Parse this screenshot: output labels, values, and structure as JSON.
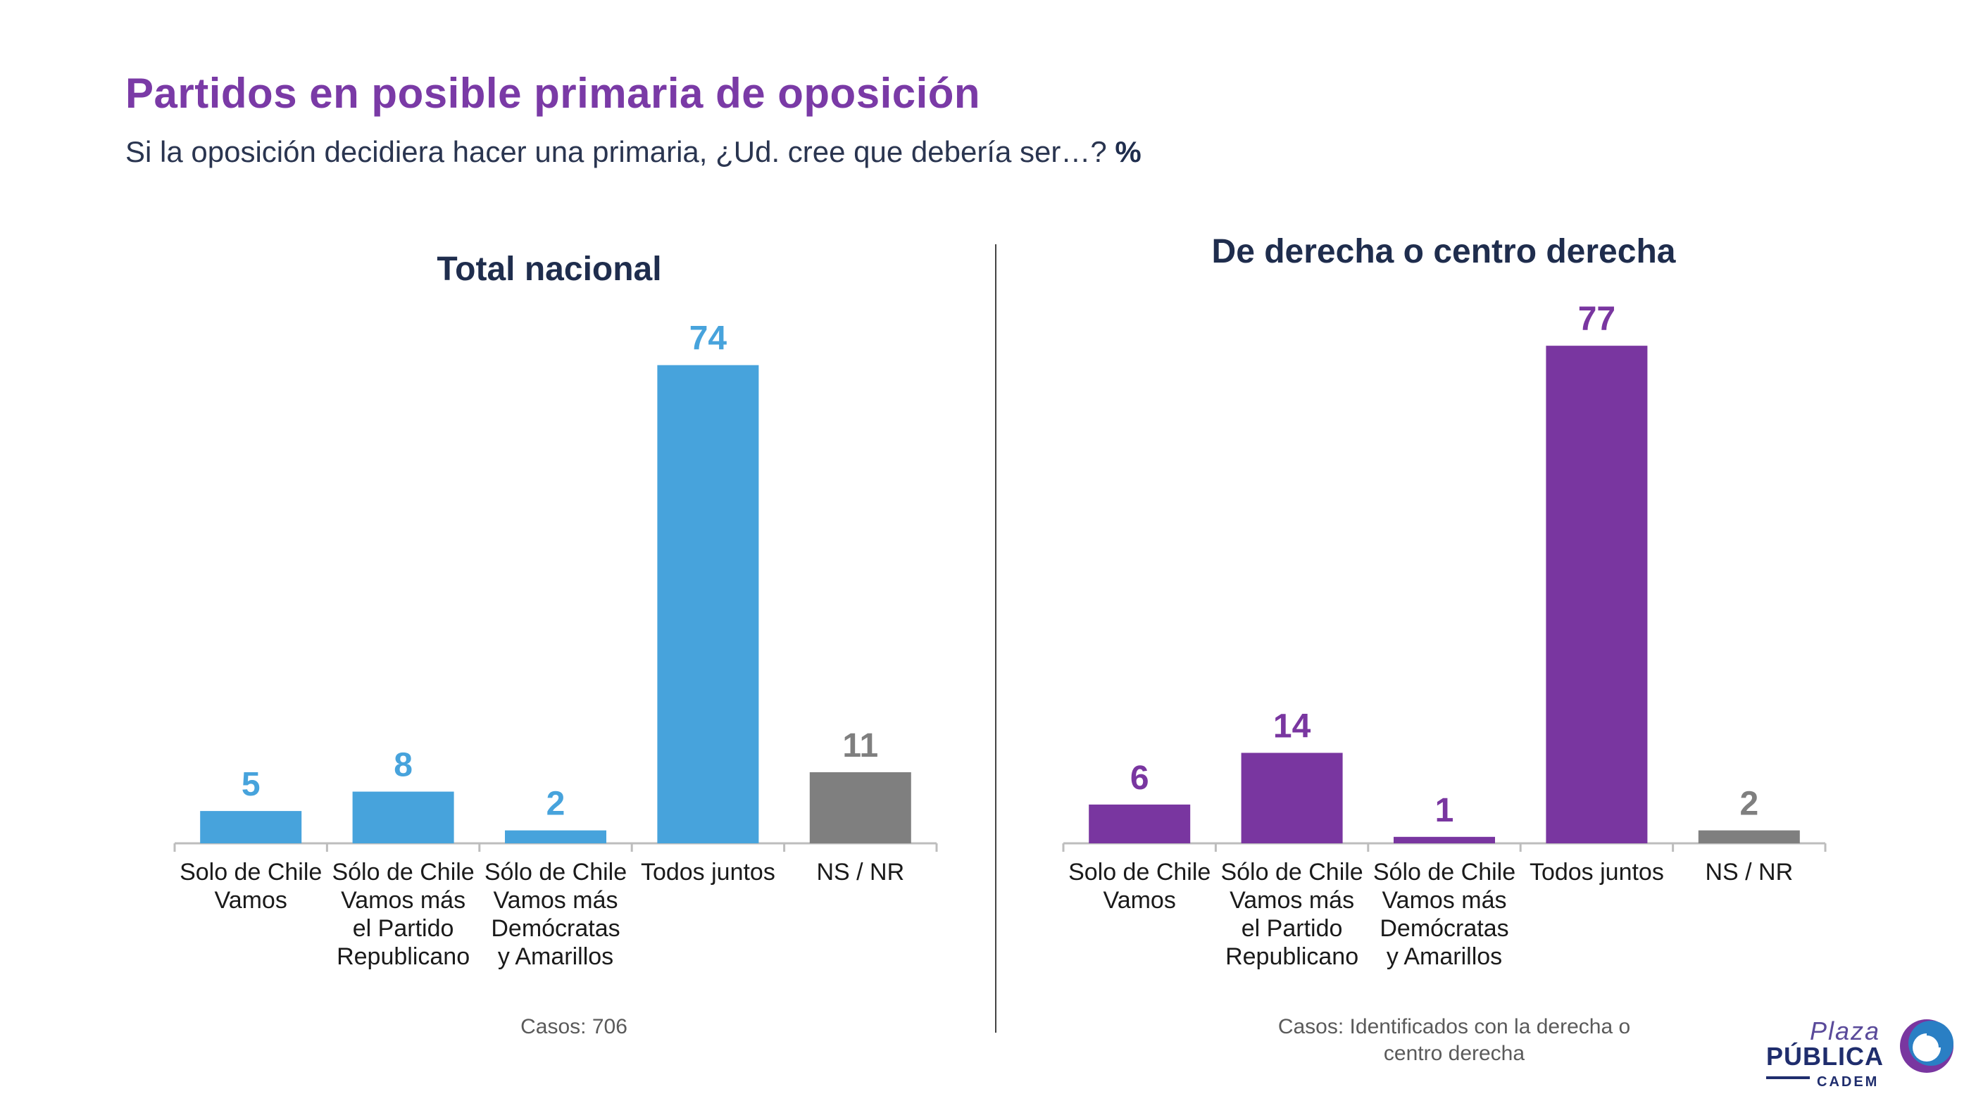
{
  "header": {
    "title": "Partidos en posible primaria de oposición",
    "subtitle": "Si la oposición decidiera hacer una primaria, ¿Ud. cree que debería ser…?",
    "subtitle_unit": "%"
  },
  "chart_data": [
    {
      "type": "bar",
      "title": "Total nacional",
      "categories": [
        [
          "Solo de Chile",
          "Vamos"
        ],
        [
          "Sólo de Chile",
          "Vamos más",
          "el Partido",
          "Republicano"
        ],
        [
          "Sólo de Chile",
          "Vamos más",
          "Demócratas",
          "y Amarillos"
        ],
        [
          "Todos juntos"
        ],
        [
          "NS / NR"
        ]
      ],
      "values": [
        5,
        8,
        2,
        74,
        11
      ],
      "colors": [
        "#47a3dc",
        "#47a3dc",
        "#47a3dc",
        "#47a3dc",
        "#7f7f7f"
      ],
      "ylim": [
        0,
        100
      ],
      "grid": false,
      "note_label": "Casos:",
      "note_text": "706"
    },
    {
      "type": "bar",
      "title": "De derecha o centro derecha",
      "categories": [
        [
          "Solo de Chile",
          "Vamos"
        ],
        [
          "Sólo de Chile",
          "Vamos más",
          "el Partido",
          "Republicano"
        ],
        [
          "Sólo de Chile",
          "Vamos más",
          "Demócratas",
          "y Amarillos"
        ],
        [
          "Todos juntos"
        ],
        [
          "NS / NR"
        ]
      ],
      "values": [
        6,
        14,
        1,
        77,
        2
      ],
      "colors": [
        "#7936a0",
        "#7936a0",
        "#7936a0",
        "#7936a0",
        "#7f7f7f"
      ],
      "ylim": [
        0,
        100
      ],
      "grid": false,
      "note_label": "Casos:",
      "note_text": "Identificados con la derecha o centro derecha"
    }
  ],
  "logo": {
    "line1": "Plaza",
    "line2": "PÚBLICA",
    "line3": "CADEM",
    "accent": "#2a7fc4"
  }
}
